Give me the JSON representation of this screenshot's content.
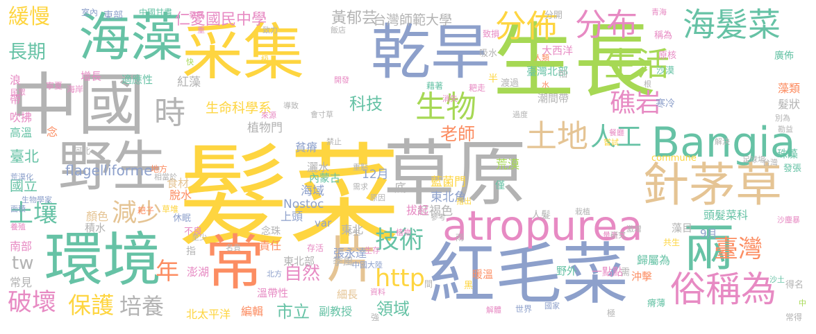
{
  "palette": {
    "yellow": "#FED540",
    "green": "#66C2A5",
    "blue": "#8DA0CB",
    "orange": "#FC8D62",
    "pink": "#E78AC3",
    "lime": "#A6D854",
    "tan": "#E5C494",
    "gray": "#B3B3B3"
  },
  "words": [
    {
      "t": "髮菜",
      "c": "yellow"
    },
    {
      "t": "草原",
      "c": "gray"
    },
    {
      "t": "生長",
      "c": "lime"
    },
    {
      "t": "采集",
      "c": "yellow"
    },
    {
      "t": "乾旱",
      "c": "blue"
    },
    {
      "t": "海藻",
      "c": "green"
    },
    {
      "t": "中國",
      "c": "gray"
    },
    {
      "t": "野生",
      "c": "gray"
    },
    {
      "t": "環境",
      "c": "green"
    },
    {
      "t": "常",
      "c": "orange"
    },
    {
      "t": "片",
      "c": "tan"
    },
    {
      "t": "紅毛菜",
      "c": "blue"
    },
    {
      "t": "atropurea",
      "c": "pink"
    },
    {
      "t": "Bangia",
      "c": "green"
    },
    {
      "t": "針茅草",
      "c": "tan"
    },
    {
      "t": "兩",
      "c": "green"
    },
    {
      "t": "俗稱為",
      "c": "pink"
    },
    {
      "t": "海髮菜",
      "c": "green"
    },
    {
      "t": "分布",
      "c": "pink"
    },
    {
      "t": "分佈",
      "c": "yellow"
    },
    {
      "t": "生活",
      "c": "lime"
    },
    {
      "t": "礁岩",
      "c": "pink"
    },
    {
      "t": "臺灣",
      "c": "orange"
    },
    {
      "t": "生物",
      "c": "lime"
    },
    {
      "t": "土地",
      "c": "tan"
    },
    {
      "t": "時",
      "c": "gray"
    },
    {
      "t": "人工",
      "c": "green"
    },
    {
      "t": "緩慢",
      "c": "yellow"
    },
    {
      "t": "長期",
      "c": "green"
    },
    {
      "t": "土壤",
      "c": "green"
    },
    {
      "t": "減少",
      "c": "tan"
    },
    {
      "t": "年",
      "c": "orange"
    },
    {
      "t": "保護",
      "c": "yellow"
    },
    {
      "t": "培養",
      "c": "gray"
    },
    {
      "t": "破壞",
      "c": "pink"
    },
    {
      "t": "技術",
      "c": "green"
    },
    {
      "t": "科技",
      "c": "green"
    },
    {
      "t": "老師",
      "c": "orange"
    },
    {
      "t": "http",
      "c": "yellow"
    },
    {
      "t": "自然",
      "c": "pink"
    },
    {
      "t": "市立",
      "c": "green"
    },
    {
      "t": "領域",
      "c": "green"
    },
    {
      "t": "tw",
      "c": "gray"
    },
    {
      "t": "仁愛國民中學",
      "c": "pink"
    },
    {
      "t": "黃郁芸",
      "c": "gray"
    },
    {
      "t": "台灣師範大學",
      "c": "gray"
    },
    {
      "t": "生命科學系",
      "c": "yellow"
    },
    {
      "t": "植物門",
      "c": "gray"
    },
    {
      "t": "荒漠",
      "c": "lime"
    },
    {
      "t": "藍菌門",
      "c": "yellow"
    },
    {
      "t": "東北角",
      "c": "blue"
    },
    {
      "t": "紅褐色",
      "c": "gray"
    },
    {
      "t": "拔起",
      "c": "pink"
    },
    {
      "t": "灑水",
      "c": "gray"
    },
    {
      "t": "貧瘠",
      "c": "blue"
    },
    {
      "t": "內蒙古",
      "c": "green"
    },
    {
      "t": "12月",
      "c": "blue"
    },
    {
      "t": "底",
      "c": "gray"
    },
    {
      "t": "海域",
      "c": "blue"
    },
    {
      "t": "Nostoc",
      "c": "blue"
    },
    {
      "t": "上頭",
      "c": "blue"
    },
    {
      "t": "var",
      "c": "blue"
    },
    {
      "t": "flagelliforme",
      "c": "blue"
    },
    {
      "t": "食材",
      "c": "tan"
    },
    {
      "t": "脫水",
      "c": "orange"
    },
    {
      "t": "顏色",
      "c": "tan"
    },
    {
      "t": "積水",
      "c": "gray"
    },
    {
      "t": "紅藻",
      "c": "gray"
    },
    {
      "t": "適應性",
      "c": "green"
    },
    {
      "t": "增長",
      "c": "pink"
    },
    {
      "t": "浪",
      "c": "pink"
    },
    {
      "t": "帶",
      "c": "pink"
    },
    {
      "t": "吹拂",
      "c": "pink"
    },
    {
      "t": "高溫",
      "c": "green"
    },
    {
      "t": "念",
      "c": "orange"
    },
    {
      "t": "臺北",
      "c": "green"
    },
    {
      "t": "國立",
      "c": "green"
    },
    {
      "t": "南部",
      "c": "pink"
    },
    {
      "t": "常見",
      "c": "gray"
    },
    {
      "t": "東北",
      "c": "gray"
    },
    {
      "t": "責任",
      "c": "orange"
    },
    {
      "t": "東北部",
      "c": "gray"
    },
    {
      "t": "季風",
      "c": "gray"
    },
    {
      "t": "澎湖",
      "c": "pink"
    },
    {
      "t": "溫帶性",
      "c": "pink"
    },
    {
      "t": "北太平洋",
      "c": "yellow"
    },
    {
      "t": "編輯",
      "c": "orange"
    },
    {
      "t": "副教授",
      "c": "green"
    },
    {
      "t": "細長",
      "c": "tan"
    },
    {
      "t": "張永達",
      "c": "blue"
    },
    {
      "t": "暖溫",
      "c": "orange"
    },
    {
      "t": "野外",
      "c": "green"
    },
    {
      "t": "一點點",
      "c": "pink"
    },
    {
      "t": "歸屬為",
      "c": "green"
    },
    {
      "t": "沖擊",
      "c": "orange"
    },
    {
      "t": "頭髮菜科",
      "c": "green"
    },
    {
      "t": "藻目",
      "c": "gray"
    },
    {
      "t": "9月",
      "c": "blue"
    },
    {
      "t": "東部",
      "c": "blue"
    },
    {
      "t": "中國甘肅",
      "c": "green"
    },
    {
      "t": "室內",
      "c": "blue"
    },
    {
      "t": "大西洋",
      "c": "pink"
    },
    {
      "t": "臺灣北部",
      "c": "green"
    },
    {
      "t": "潮間帶",
      "c": "gray"
    },
    {
      "t": "原核",
      "c": "pink"
    },
    {
      "t": "廣佈",
      "c": "green"
    },
    {
      "t": "藻類",
      "c": "orange"
    },
    {
      "t": "髮狀",
      "c": "gray"
    },
    {
      "t": "珠藻",
      "c": "green"
    },
    {
      "t": "寒冷",
      "c": "blue"
    },
    {
      "t": "稱為",
      "c": "pink"
    },
    {
      "t": "沙漠",
      "c": "green"
    },
    {
      "t": "發張",
      "c": "green"
    },
    {
      "t": "commune",
      "c": "yellow"
    },
    {
      "t": "人髮",
      "c": "gray"
    },
    {
      "t": "雨",
      "c": "gray"
    },
    {
      "t": "不良",
      "c": "pink"
    },
    {
      "t": "休眠",
      "c": "blue"
    },
    {
      "t": "指",
      "c": "gray"
    },
    {
      "t": "地方",
      "c": "orange"
    },
    {
      "t": "河北",
      "c": "gray"
    },
    {
      "t": "海岸",
      "c": "pink"
    },
    {
      "t": "寧夏",
      "c": "pink"
    },
    {
      "t": "草堆",
      "c": "yellow"
    },
    {
      "t": "耙子",
      "c": "orange"
    },
    {
      "t": "念珠",
      "c": "gray"
    },
    {
      "t": "半",
      "c": "yellow"
    },
    {
      "t": "渡過",
      "c": "gray"
    },
    {
      "t": "藉著",
      "c": "green"
    },
    {
      "t": "耙走",
      "c": "pink"
    },
    {
      "t": "吸水",
      "c": "gray"
    },
    {
      "t": "致損",
      "c": "pink"
    },
    {
      "t": "分開",
      "c": "gray"
    },
    {
      "t": "怕",
      "c": "gray"
    },
    {
      "t": "僅",
      "c": "green"
    },
    {
      "t": "世界",
      "c": "blue"
    },
    {
      "t": "黑",
      "c": "yellow"
    },
    {
      "t": "間",
      "c": "gray"
    },
    {
      "t": "瘠薄",
      "c": "green"
    },
    {
      "t": "得名",
      "c": "gray"
    },
    {
      "t": "常得",
      "c": "gray"
    },
    {
      "t": "需",
      "c": "gray"
    },
    {
      "t": "極",
      "c": "gray"
    },
    {
      "t": "共生",
      "c": "yellow"
    },
    {
      "t": "不生",
      "c": "gray"
    },
    {
      "t": "至少",
      "c": "gray"
    },
    {
      "t": "存活",
      "c": "pink"
    },
    {
      "t": "生存",
      "c": "pink"
    },
    {
      "t": "強",
      "c": "gray"
    },
    {
      "t": "資料",
      "c": "pink"
    },
    {
      "t": "中國大陸",
      "c": "blue"
    },
    {
      "t": "北方",
      "c": "blue"
    },
    {
      "t": "名貴",
      "c": "gray"
    },
    {
      "t": "植物",
      "c": "pink"
    },
    {
      "t": "參考",
      "c": "gray"
    },
    {
      "t": "量產",
      "c": "pink"
    },
    {
      "t": "激增",
      "c": "gray"
    },
    {
      "t": "研究",
      "c": "gray"
    },
    {
      "t": "沙塵暴",
      "c": "pink"
    },
    {
      "t": "沙土",
      "c": "green"
    },
    {
      "t": "國家",
      "c": "blue"
    },
    {
      "t": "解體",
      "c": "pink"
    },
    {
      "t": "栽植",
      "c": "gray"
    },
    {
      "t": "需求",
      "c": "gray"
    },
    {
      "t": "重點",
      "c": "gray"
    },
    {
      "t": "原因",
      "c": "gray"
    },
    {
      "t": "指出",
      "c": "yellow"
    },
    {
      "t": "相當於",
      "c": "gray"
    },
    {
      "t": "荒漠化",
      "c": "blue"
    },
    {
      "t": "生物學家",
      "c": "blue"
    },
    {
      "t": "面積",
      "c": "blue"
    },
    {
      "t": "養殖",
      "c": "pink"
    },
    {
      "t": "民眾",
      "c": "pink"
    },
    {
      "t": "消失",
      "c": "pink"
    },
    {
      "t": "會寸草",
      "c": "gray"
    },
    {
      "t": "禁止",
      "c": "gray"
    },
    {
      "t": "來源",
      "c": "pink"
    },
    {
      "t": "導致",
      "c": "gray"
    },
    {
      "t": "開發",
      "c": "pink"
    },
    {
      "t": "快",
      "c": "lime"
    },
    {
      "t": "級",
      "c": "yellow"
    },
    {
      "t": "致力",
      "c": "gray"
    },
    {
      "t": "重",
      "c": "pink"
    },
    {
      "t": "發展",
      "c": "pink"
    },
    {
      "t": "飯店",
      "c": "gray"
    },
    {
      "t": "青海",
      "c": "pink"
    },
    {
      "t": "人類",
      "c": "orange"
    },
    {
      "t": "水",
      "c": "orange"
    },
    {
      "t": "根",
      "c": "gray"
    },
    {
      "t": "過度",
      "c": "gray"
    },
    {
      "t": "別為",
      "c": "gray"
    },
    {
      "t": "勘益",
      "c": "gray"
    },
    {
      "t": "餐廳",
      "c": "pink"
    },
    {
      "t": "嘗試",
      "c": "yellow"
    },
    {
      "t": "解決",
      "c": "gray"
    },
    {
      "t": "足球場",
      "c": "gray"
    },
    {
      "t": "台灣",
      "c": "gray"
    },
    {
      "t": "中",
      "c": "lime"
    }
  ]
}
